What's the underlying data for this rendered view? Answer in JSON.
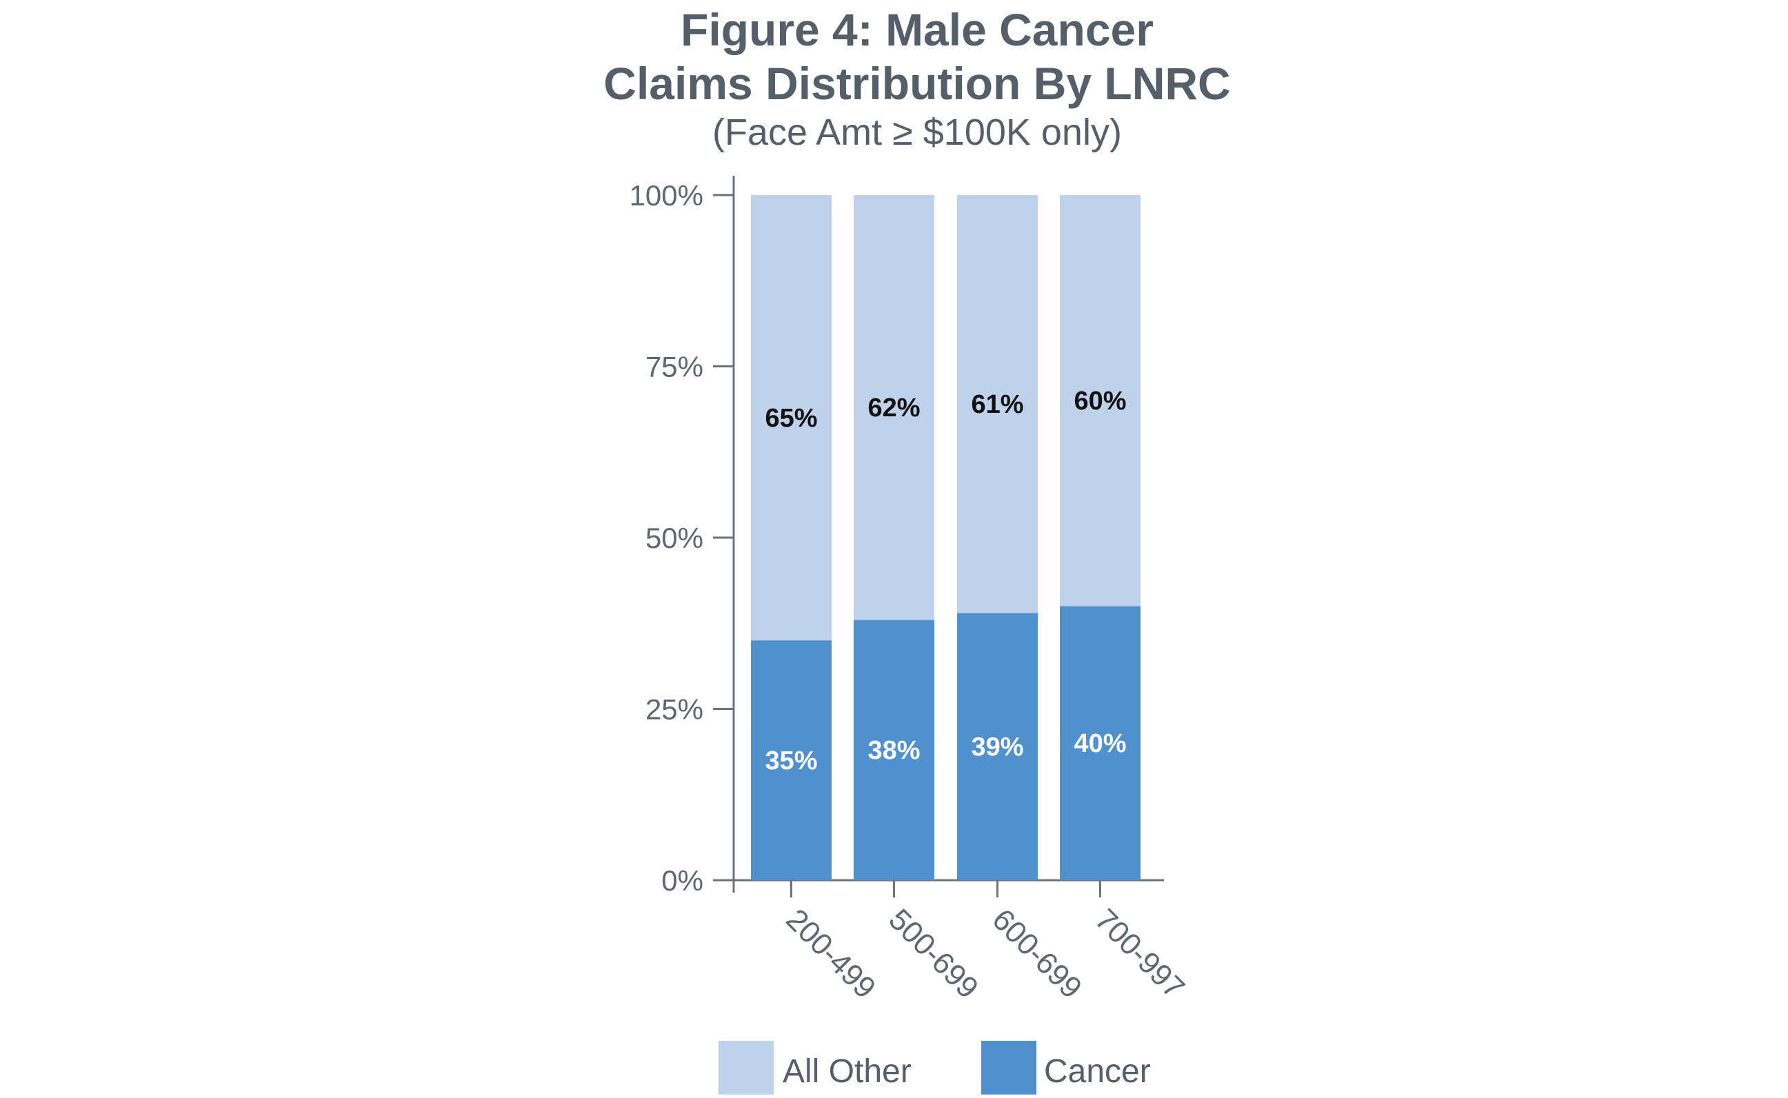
{
  "chart_data": {
    "type": "bar",
    "stacked": true,
    "title": "Figure 4:  Male Cancer",
    "title_line2": "Claims Distribution By LNRC",
    "subtitle": "(Face Amt ≥ $100K only)",
    "xlabel": "",
    "ylabel": "",
    "ylim": [
      0,
      100
    ],
    "yticks": [
      0,
      25,
      50,
      75,
      100
    ],
    "ytick_labels": [
      "0%",
      "25%",
      "50%",
      "75%",
      "100%"
    ],
    "categories": [
      "200-499",
      "500-699",
      "600-699",
      "700-997"
    ],
    "series": [
      {
        "name": "Cancer",
        "values": [
          35,
          38,
          39,
          40
        ],
        "labels": [
          "35%",
          "38%",
          "39%",
          "40%"
        ],
        "color": "#5090cd",
        "label_color": "#ffffff"
      },
      {
        "name": "All Other",
        "values": [
          65,
          62,
          61,
          60
        ],
        "labels": [
          "65%",
          "62%",
          "61%",
          "60%"
        ],
        "color": "#c0d1ec",
        "label_color": "#111111"
      }
    ],
    "legend": {
      "placement": "bottom",
      "order": [
        "All Other",
        "Cancer"
      ]
    },
    "grid": false,
    "axis_color": "#6b737b"
  }
}
